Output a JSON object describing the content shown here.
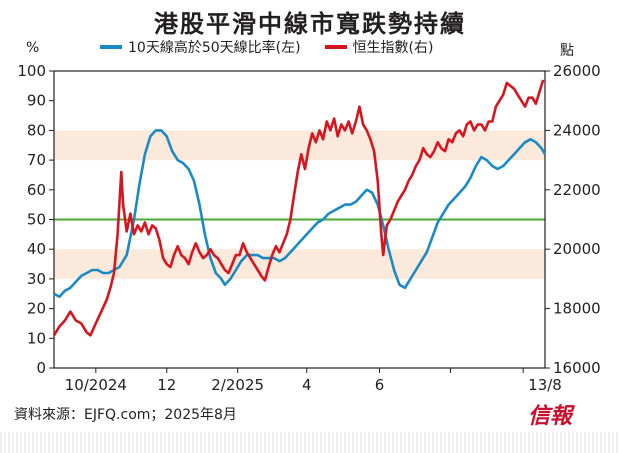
{
  "title": "港股平滑中線市寬跌勢持續",
  "left_unit": "%",
  "right_unit": "點",
  "legend": {
    "breadth": "10天線高於50天線比率(左)",
    "hsi": "恒生指數(右)"
  },
  "source": "資料來源：EJFQ.com；2025年8月",
  "logo": "信報",
  "colors": {
    "breadth": "#1a8ac6",
    "hsi": "#d7151f",
    "midline": "#4aa832",
    "band": "#fbe9dc"
  },
  "chart_data": {
    "type": "line",
    "title": "港股平滑中線市寬跌勢持續",
    "x_ticks": [
      "10/2024",
      "12",
      "2/2025",
      "4",
      "6",
      "13/8"
    ],
    "left_axis": {
      "unit": "%",
      "ylim": [
        0,
        100
      ],
      "ticks": [
        0,
        10,
        20,
        30,
        40,
        50,
        60,
        70,
        80,
        90,
        100
      ]
    },
    "right_axis": {
      "unit": "點",
      "ylim": [
        16000,
        26000
      ],
      "ticks": [
        16000,
        18000,
        20000,
        22000,
        24000,
        26000
      ]
    },
    "reference_line": {
      "axis": "left",
      "value": 50
    },
    "bands": [
      {
        "axis": "left",
        "from": 30,
        "to": 40
      },
      {
        "axis": "left",
        "from": 70,
        "to": 80
      }
    ],
    "grid": false,
    "legend_position": "top",
    "series": [
      {
        "name": "10天線高於50天線比率(左)",
        "axis": "left",
        "color": "#1a8ac6",
        "points": [
          [
            0,
            25
          ],
          [
            3,
            24
          ],
          [
            6,
            26
          ],
          [
            9,
            27
          ],
          [
            12,
            29
          ],
          [
            15,
            31
          ],
          [
            18,
            32
          ],
          [
            21,
            33
          ],
          [
            24,
            33
          ],
          [
            27,
            32
          ],
          [
            30,
            32
          ],
          [
            33,
            33
          ],
          [
            36,
            34
          ],
          [
            40,
            38
          ],
          [
            44,
            50
          ],
          [
            47,
            62
          ],
          [
            50,
            72
          ],
          [
            53,
            78
          ],
          [
            56,
            80
          ],
          [
            59,
            80
          ],
          [
            62,
            78
          ],
          [
            65,
            73
          ],
          [
            68,
            70
          ],
          [
            71,
            69
          ],
          [
            74,
            67
          ],
          [
            77,
            63
          ],
          [
            80,
            55
          ],
          [
            83,
            45
          ],
          [
            86,
            37
          ],
          [
            89,
            32
          ],
          [
            92,
            30
          ],
          [
            94,
            28
          ],
          [
            97,
            30
          ],
          [
            100,
            33
          ],
          [
            103,
            36
          ],
          [
            106,
            38
          ],
          [
            109,
            38
          ],
          [
            112,
            38
          ],
          [
            115,
            37
          ],
          [
            118,
            37
          ],
          [
            121,
            37
          ],
          [
            124,
            36
          ],
          [
            127,
            37
          ],
          [
            130,
            39
          ],
          [
            133,
            41
          ],
          [
            136,
            43
          ],
          [
            139,
            45
          ],
          [
            142,
            47
          ],
          [
            145,
            49
          ],
          [
            148,
            50
          ],
          [
            151,
            52
          ],
          [
            154,
            53
          ],
          [
            157,
            54
          ],
          [
            160,
            55
          ],
          [
            163,
            55
          ],
          [
            166,
            56
          ],
          [
            169,
            58
          ],
          [
            172,
            60
          ],
          [
            175,
            59
          ],
          [
            178,
            55
          ],
          [
            181,
            48
          ],
          [
            184,
            40
          ],
          [
            187,
            33
          ],
          [
            190,
            28
          ],
          [
            193,
            27
          ],
          [
            196,
            30
          ],
          [
            199,
            33
          ],
          [
            202,
            36
          ],
          [
            205,
            39
          ],
          [
            208,
            44
          ],
          [
            211,
            49
          ],
          [
            214,
            52
          ],
          [
            217,
            55
          ],
          [
            220,
            57
          ],
          [
            223,
            59
          ],
          [
            226,
            61
          ],
          [
            229,
            64
          ],
          [
            232,
            68
          ],
          [
            235,
            71
          ],
          [
            238,
            70
          ],
          [
            241,
            68
          ],
          [
            244,
            67
          ],
          [
            247,
            68
          ],
          [
            250,
            70
          ],
          [
            253,
            72
          ],
          [
            256,
            74
          ],
          [
            259,
            76
          ],
          [
            262,
            77
          ],
          [
            265,
            76
          ],
          [
            268,
            74
          ],
          [
            270,
            72
          ]
        ]
      },
      {
        "name": "恒生指數(右)",
        "axis": "right",
        "color": "#d7151f",
        "points": [
          [
            0,
            17100
          ],
          [
            3,
            17400
          ],
          [
            6,
            17600
          ],
          [
            9,
            17900
          ],
          [
            12,
            17600
          ],
          [
            15,
            17500
          ],
          [
            18,
            17200
          ],
          [
            20,
            17100
          ],
          [
            23,
            17500
          ],
          [
            26,
            17900
          ],
          [
            29,
            18300
          ],
          [
            31,
            18700
          ],
          [
            33,
            19200
          ],
          [
            35,
            20500
          ],
          [
            37,
            22600
          ],
          [
            38,
            21500
          ],
          [
            40,
            20600
          ],
          [
            42,
            21200
          ],
          [
            44,
            20500
          ],
          [
            46,
            20800
          ],
          [
            48,
            20600
          ],
          [
            50,
            20900
          ],
          [
            52,
            20500
          ],
          [
            54,
            20800
          ],
          [
            56,
            20700
          ],
          [
            58,
            20300
          ],
          [
            60,
            19700
          ],
          [
            62,
            19500
          ],
          [
            64,
            19400
          ],
          [
            66,
            19800
          ],
          [
            68,
            20100
          ],
          [
            70,
            19800
          ],
          [
            72,
            19700
          ],
          [
            74,
            19500
          ],
          [
            76,
            19900
          ],
          [
            78,
            20200
          ],
          [
            80,
            19900
          ],
          [
            82,
            19700
          ],
          [
            84,
            19800
          ],
          [
            86,
            20000
          ],
          [
            88,
            19800
          ],
          [
            90,
            19700
          ],
          [
            92,
            19500
          ],
          [
            94,
            19300
          ],
          [
            96,
            19200
          ],
          [
            98,
            19500
          ],
          [
            100,
            19800
          ],
          [
            102,
            19800
          ],
          [
            104,
            20200
          ],
          [
            106,
            19900
          ],
          [
            108,
            19700
          ],
          [
            110,
            19500
          ],
          [
            112,
            19300
          ],
          [
            114,
            19100
          ],
          [
            116,
            18950
          ],
          [
            118,
            19400
          ],
          [
            120,
            19800
          ],
          [
            122,
            20100
          ],
          [
            124,
            19900
          ],
          [
            126,
            20200
          ],
          [
            128,
            20500
          ],
          [
            130,
            21000
          ],
          [
            132,
            21800
          ],
          [
            134,
            22600
          ],
          [
            136,
            23200
          ],
          [
            138,
            22700
          ],
          [
            140,
            23400
          ],
          [
            142,
            23900
          ],
          [
            144,
            23600
          ],
          [
            146,
            24000
          ],
          [
            148,
            23700
          ],
          [
            150,
            24300
          ],
          [
            152,
            24000
          ],
          [
            154,
            24400
          ],
          [
            156,
            23800
          ],
          [
            158,
            24200
          ],
          [
            160,
            24000
          ],
          [
            162,
            24300
          ],
          [
            164,
            23900
          ],
          [
            166,
            24300
          ],
          [
            168,
            24800
          ],
          [
            170,
            24200
          ],
          [
            172,
            24000
          ],
          [
            174,
            23700
          ],
          [
            176,
            23300
          ],
          [
            178,
            22300
          ],
          [
            180,
            20500
          ],
          [
            181,
            19800
          ],
          [
            183,
            20800
          ],
          [
            185,
            21000
          ],
          [
            187,
            21300
          ],
          [
            189,
            21600
          ],
          [
            191,
            21800
          ],
          [
            193,
            22000
          ],
          [
            195,
            22300
          ],
          [
            197,
            22500
          ],
          [
            199,
            22800
          ],
          [
            201,
            23000
          ],
          [
            203,
            23400
          ],
          [
            205,
            23200
          ],
          [
            207,
            23100
          ],
          [
            209,
            23300
          ],
          [
            211,
            23600
          ],
          [
            213,
            23400
          ],
          [
            215,
            23300
          ],
          [
            217,
            23700
          ],
          [
            219,
            23600
          ],
          [
            221,
            23900
          ],
          [
            223,
            24000
          ],
          [
            225,
            23800
          ],
          [
            227,
            24200
          ],
          [
            229,
            24300
          ],
          [
            231,
            24000
          ],
          [
            233,
            24200
          ],
          [
            235,
            24200
          ],
          [
            237,
            24000
          ],
          [
            239,
            24300
          ],
          [
            241,
            24300
          ],
          [
            243,
            24800
          ],
          [
            245,
            25000
          ],
          [
            247,
            25200
          ],
          [
            249,
            25600
          ],
          [
            251,
            25500
          ],
          [
            253,
            25400
          ],
          [
            255,
            25200
          ],
          [
            257,
            25000
          ],
          [
            259,
            24800
          ],
          [
            261,
            25100
          ],
          [
            263,
            25100
          ],
          [
            265,
            24900
          ],
          [
            267,
            25300
          ],
          [
            269,
            25700
          ]
        ]
      }
    ]
  }
}
